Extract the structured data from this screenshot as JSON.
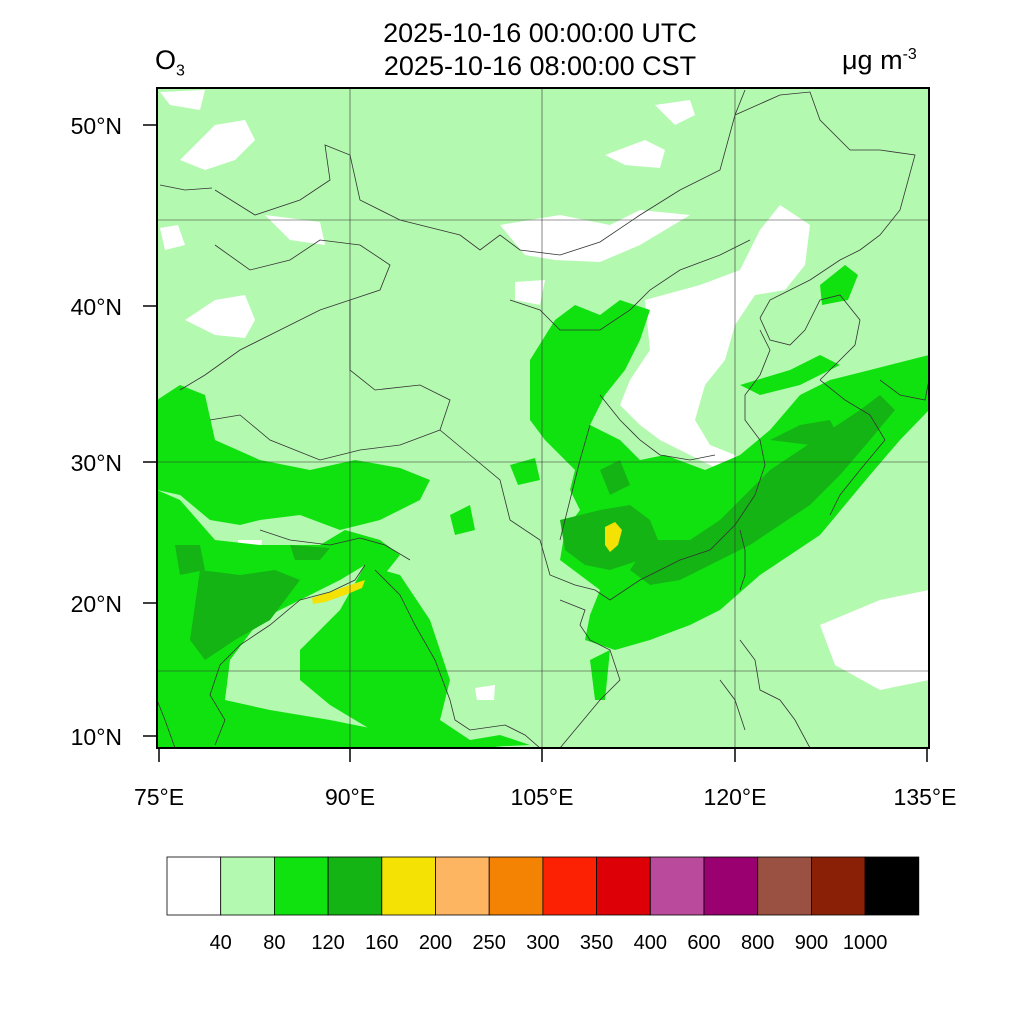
{
  "title": {
    "line1": "2025-10-16 00:00:00 UTC",
    "line2": "2025-10-16 08:00:00 CST"
  },
  "variable": {
    "name": "O",
    "subscript": "3"
  },
  "units": {
    "base": "μg m",
    "exponent": "-3"
  },
  "axes": {
    "lat_ticks": [
      "50°N",
      "40°N",
      "30°N",
      "20°N",
      "10°N"
    ],
    "lon_ticks": [
      "75°E",
      "90°E",
      "105°E",
      "120°E",
      "135°E"
    ]
  },
  "colorbar": {
    "labels": [
      "40",
      "80",
      "120",
      "160",
      "200",
      "250",
      "300",
      "350",
      "400",
      "600",
      "800",
      "900",
      "1000"
    ],
    "colors": [
      "#ffffff",
      "#b4f9b0",
      "#10e210",
      "#14b414",
      "#f3e203",
      "#feb561",
      "#f58303",
      "#fd2103",
      "#dd0006",
      "#ba4a9b",
      "#9a0070",
      "#9a5141",
      "#8a2106",
      "#000000"
    ]
  }
}
